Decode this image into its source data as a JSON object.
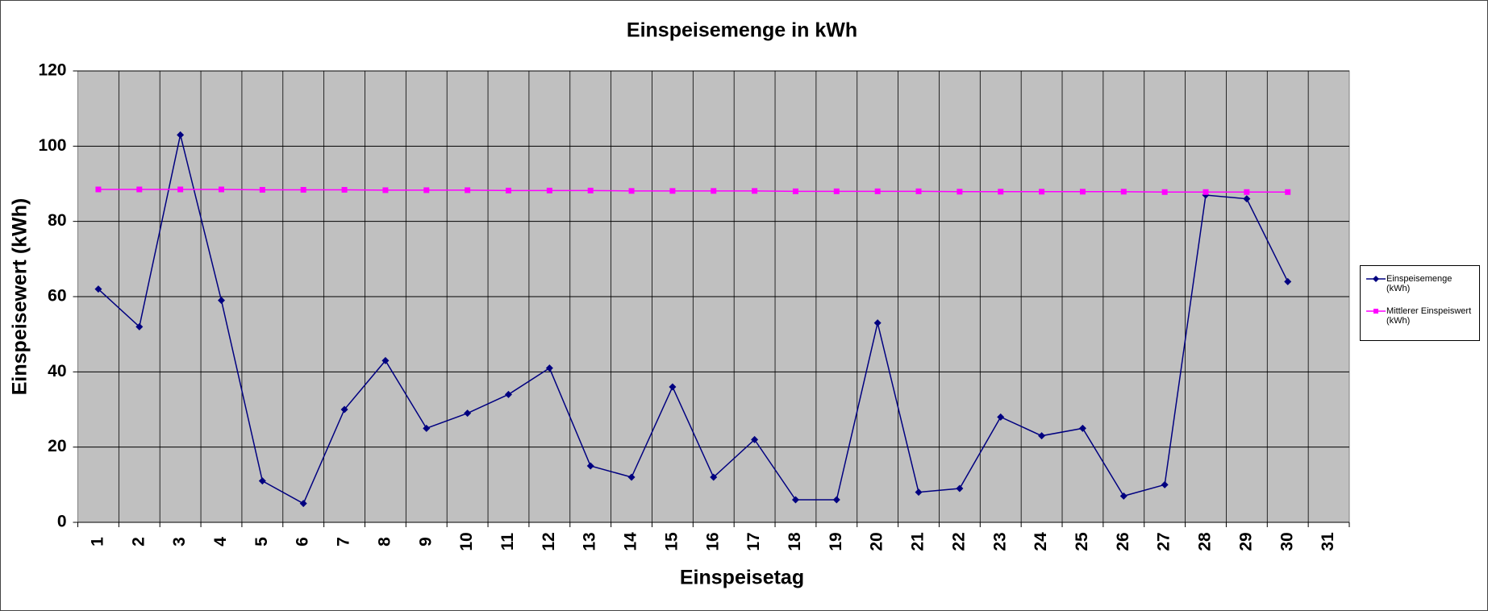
{
  "chart_data": {
    "type": "line",
    "title": "Einspeisemenge in kWh",
    "x_label": "Einspeisetag",
    "y_label": "Einspeisewert  (kWh)",
    "categories": [
      "1",
      "2",
      "3",
      "4",
      "5",
      "6",
      "7",
      "8",
      "9",
      "10",
      "11",
      "12",
      "13",
      "14",
      "15",
      "16",
      "17",
      "18",
      "19",
      "20",
      "21",
      "22",
      "23",
      "24",
      "25",
      "26",
      "27",
      "28",
      "29",
      "30",
      "31"
    ],
    "series": [
      {
        "name": "Einspeisemenge (kWh)",
        "color": "#000080",
        "marker": "diamond",
        "values": [
          62,
          52,
          103,
          59,
          11,
          5,
          30,
          43,
          25,
          29,
          34,
          41,
          15,
          12,
          36,
          12,
          22,
          6,
          6,
          53,
          8,
          9,
          28,
          23,
          25,
          7,
          10,
          87,
          86,
          64,
          null
        ]
      },
      {
        "name": "Mittlerer Einspeiswert (kWh)",
        "color": "#ff00ff",
        "marker": "square",
        "values": [
          88.5,
          88.5,
          88.5,
          88.5,
          88.4,
          88.4,
          88.4,
          88.3,
          88.3,
          88.3,
          88.2,
          88.2,
          88.2,
          88.1,
          88.1,
          88.1,
          88.1,
          88.0,
          88.0,
          88.0,
          88.0,
          87.9,
          87.9,
          87.9,
          87.9,
          87.9,
          87.8,
          87.8,
          87.8,
          87.8,
          null
        ]
      }
    ],
    "ylim": [
      0,
      120
    ],
    "yticks": [
      0,
      20,
      40,
      60,
      80,
      100,
      120
    ],
    "grid": true,
    "legend": "right"
  }
}
